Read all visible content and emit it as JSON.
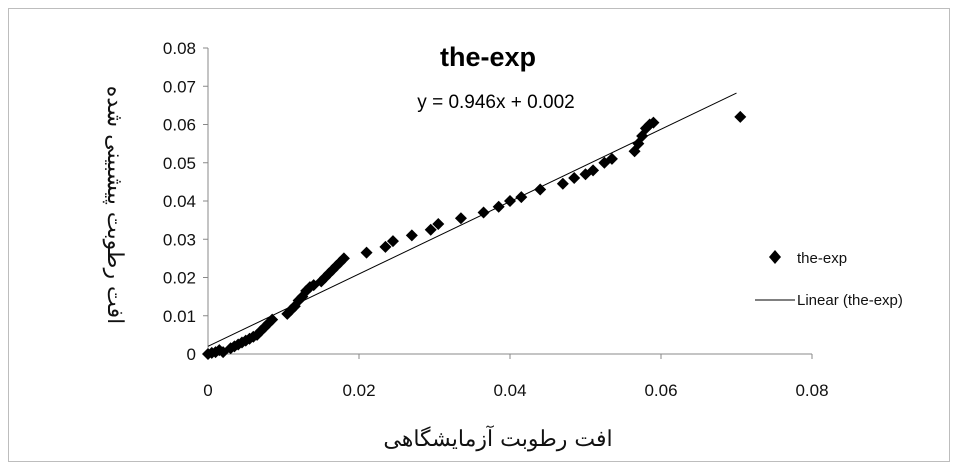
{
  "chart_data": {
    "type": "scatter",
    "title": "the-exp",
    "trendline_equation": "y = 0.946x + 0.002",
    "xlabel": "افت رطوبت آزمایشگاهی",
    "ylabel": "افت رطوبت پیشبینی شده",
    "xlim": [
      0,
      0.08
    ],
    "ylim": [
      0,
      0.08
    ],
    "x_ticks": [
      "0",
      "0.02",
      "0.04",
      "0.06",
      "0.08"
    ],
    "y_ticks": [
      "0",
      "0.01",
      "0.02",
      "0.03",
      "0.04",
      "0.05",
      "0.06",
      "0.07",
      "0.08"
    ],
    "grid": false,
    "legend_position": "right",
    "series": [
      {
        "name": "the-exp",
        "marker": "diamond",
        "color": "#000000",
        "points": [
          [
            0.0,
            0.0
          ],
          [
            0.0005,
            0.0003
          ],
          [
            0.001,
            0.0005
          ],
          [
            0.0015,
            0.001
          ],
          [
            0.002,
            0.0005
          ],
          [
            0.003,
            0.0015
          ],
          [
            0.0035,
            0.002
          ],
          [
            0.004,
            0.0025
          ],
          [
            0.0045,
            0.003
          ],
          [
            0.005,
            0.0035
          ],
          [
            0.0055,
            0.004
          ],
          [
            0.006,
            0.0045
          ],
          [
            0.0065,
            0.005
          ],
          [
            0.007,
            0.006
          ],
          [
            0.0075,
            0.007
          ],
          [
            0.008,
            0.008
          ],
          [
            0.0085,
            0.009
          ],
          [
            0.0105,
            0.0105
          ],
          [
            0.011,
            0.0115
          ],
          [
            0.0115,
            0.0125
          ],
          [
            0.012,
            0.014
          ],
          [
            0.0125,
            0.015
          ],
          [
            0.013,
            0.0165
          ],
          [
            0.0135,
            0.0175
          ],
          [
            0.014,
            0.018
          ],
          [
            0.015,
            0.019
          ],
          [
            0.0155,
            0.02
          ],
          [
            0.016,
            0.021
          ],
          [
            0.0165,
            0.022
          ],
          [
            0.017,
            0.023
          ],
          [
            0.0175,
            0.024
          ],
          [
            0.018,
            0.025
          ],
          [
            0.021,
            0.0265
          ],
          [
            0.0235,
            0.028
          ],
          [
            0.0245,
            0.0295
          ],
          [
            0.027,
            0.031
          ],
          [
            0.0295,
            0.0325
          ],
          [
            0.0305,
            0.034
          ],
          [
            0.0335,
            0.0355
          ],
          [
            0.0365,
            0.037
          ],
          [
            0.0385,
            0.0385
          ],
          [
            0.04,
            0.04
          ],
          [
            0.0415,
            0.041
          ],
          [
            0.044,
            0.043
          ],
          [
            0.047,
            0.0445
          ],
          [
            0.0485,
            0.046
          ],
          [
            0.05,
            0.047
          ],
          [
            0.051,
            0.048
          ],
          [
            0.0525,
            0.05
          ],
          [
            0.0535,
            0.051
          ],
          [
            0.0565,
            0.053
          ],
          [
            0.057,
            0.055
          ],
          [
            0.0575,
            0.057
          ],
          [
            0.058,
            0.059
          ],
          [
            0.0585,
            0.06
          ],
          [
            0.059,
            0.0605
          ],
          [
            0.0705,
            0.062
          ]
        ]
      },
      {
        "name": "Linear (the-exp)",
        "type": "line",
        "color": "#000000",
        "slope": 0.946,
        "intercept": 0.002,
        "x_range": [
          0,
          0.07
        ]
      }
    ]
  }
}
